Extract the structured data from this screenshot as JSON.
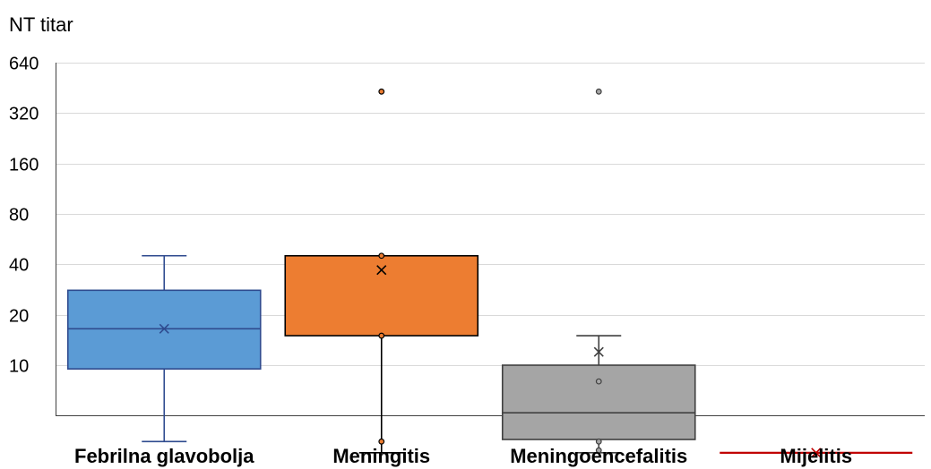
{
  "chart_data": {
    "type": "boxplot",
    "ylabel": "NT titar",
    "yscale": "log2",
    "ylim": [
      2.5,
      640
    ],
    "yticks": [
      {
        "value": 640,
        "label": "640"
      },
      {
        "value": 320,
        "label": "320"
      },
      {
        "value": 160,
        "label": "160"
      },
      {
        "value": 80,
        "label": "80"
      },
      {
        "value": 40,
        "label": "40"
      },
      {
        "value": 20,
        "label": "20"
      },
      {
        "value": 10,
        "label": "10"
      }
    ],
    "grid": true,
    "series": [
      {
        "name": "Febrilna glavobolja",
        "color": "#5B9BD5",
        "edge": "#2F4B8F",
        "mean_color": "#2F4B8F",
        "whisker_low": 3.5,
        "q1": 9.5,
        "median": 16.5,
        "q3": 28,
        "whisker_high": 45,
        "mean": 16.5,
        "points": []
      },
      {
        "name": "Meningitis",
        "color": "#ED7D31",
        "edge": "#000000",
        "mean_color": "#000000",
        "whisker_low": 3,
        "q1": 15,
        "median": 45,
        "q3": 45,
        "whisker_high": 45,
        "mean": 37,
        "points": [
          3.5,
          15,
          45,
          430
        ]
      },
      {
        "name": "Meningoencefalitis",
        "color": "#A5A5A5",
        "edge": "#404040",
        "mean_color": "#404040",
        "whisker_low": 3,
        "q1": 3.6,
        "median": 5.2,
        "q3": 10,
        "whisker_high": 15,
        "mean": 12,
        "points": [
          3.5,
          3.1,
          8,
          430
        ]
      },
      {
        "name": "Mijelitis",
        "color": "#C00000",
        "edge": "#C00000",
        "mean_color": "#C00000",
        "whisker_low": 3,
        "q1": 3,
        "median": 3,
        "q3": 3,
        "whisker_high": 3,
        "mean": 3,
        "points": []
      }
    ]
  }
}
